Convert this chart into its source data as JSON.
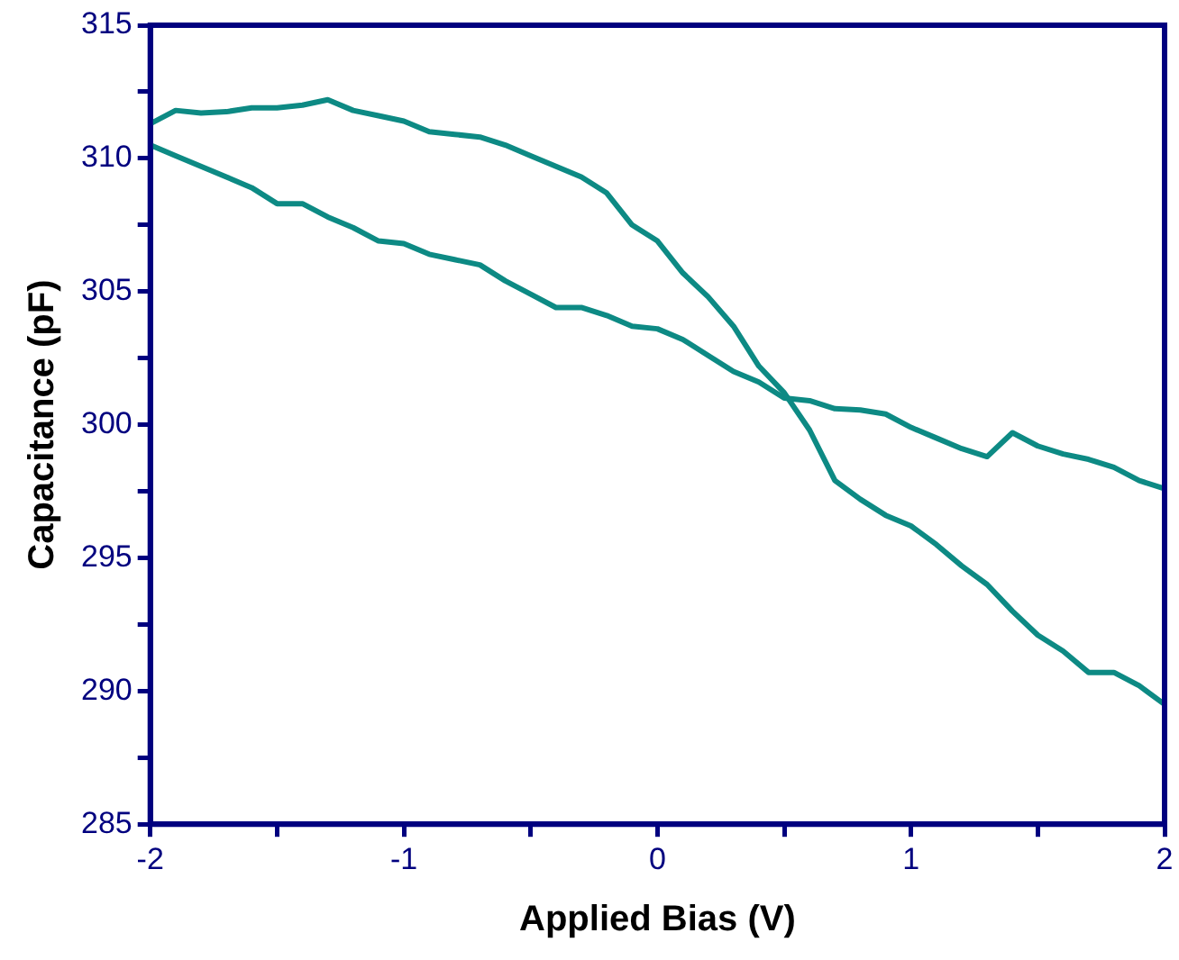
{
  "chart_data": {
    "type": "line",
    "xlabel": "Applied Bias (V)",
    "ylabel": "Capacitance (pF)",
    "xlim": [
      -2,
      2
    ],
    "ylim": [
      285,
      315
    ],
    "xticks": [
      -2,
      {
        "value": -1.5,
        "label": null
      },
      -1,
      {
        "value": -0.5,
        "label": null
      },
      0,
      {
        "value": 0.5,
        "label": null
      },
      1,
      {
        "value": 1.5,
        "label": null
      },
      2
    ],
    "yticks": [
      285,
      {
        "value": 287.5,
        "label": null
      },
      290,
      {
        "value": 292.5,
        "label": null
      },
      295,
      {
        "value": 297.5,
        "label": null
      },
      300,
      {
        "value": 302.5,
        "label": null
      },
      305,
      {
        "value": 307.5,
        "label": null
      },
      310,
      {
        "value": 312.5,
        "label": null
      },
      315
    ],
    "grid": false,
    "legend": false,
    "marker": "none",
    "line_style": "solid",
    "series": [
      {
        "color": "#0d8a84",
        "x": [
          -2,
          -1.9,
          -1.8,
          -1.7,
          -1.6,
          -1.5,
          -1.4,
          -1.3,
          -1.2,
          -1.1,
          -1,
          -0.9,
          -0.8,
          -0.7,
          -0.6,
          -0.5,
          -0.4,
          -0.3,
          -0.2,
          -0.1,
          0,
          0.1,
          0.2,
          0.3,
          0.4,
          0.5,
          0.6,
          0.7,
          0.8,
          0.9,
          1,
          1.1,
          1.2,
          1.3,
          1.4,
          1.5,
          1.6,
          1.7,
          1.8,
          1.9,
          2
        ],
        "values": [
          311.3,
          311.8,
          311.7,
          311.75,
          311.9,
          311.9,
          312.0,
          312.2,
          311.8,
          311.6,
          311.4,
          311.0,
          310.9,
          310.8,
          310.5,
          310.1,
          309.7,
          309.3,
          308.7,
          307.5,
          306.9,
          305.7,
          304.8,
          303.7,
          302.2,
          301.2,
          299.8,
          297.9,
          297.2,
          296.6,
          296.2,
          295.5,
          294.7,
          294.0,
          293.0,
          292.1,
          291.5,
          290.7,
          290.7,
          290.2,
          289.5
        ]
      },
      {
        "color": "#0d8a84",
        "x": [
          -2,
          -1.9,
          -1.8,
          -1.7,
          -1.6,
          -1.5,
          -1.4,
          -1.3,
          -1.2,
          -1.1,
          -1,
          -0.9,
          -0.8,
          -0.7,
          -0.6,
          -0.5,
          -0.4,
          -0.3,
          -0.2,
          -0.1,
          0,
          0.1,
          0.2,
          0.3,
          0.4,
          0.5,
          0.6,
          0.7,
          0.8,
          0.9,
          1,
          1.1,
          1.2,
          1.3,
          1.4,
          1.5,
          1.6,
          1.7,
          1.8,
          1.9,
          2
        ],
        "values": [
          310.5,
          310.1,
          309.7,
          309.3,
          308.9,
          308.3,
          308.3,
          307.8,
          307.4,
          306.9,
          306.8,
          306.4,
          306.2,
          306.0,
          305.4,
          304.9,
          304.4,
          304.4,
          304.1,
          303.7,
          303.6,
          303.2,
          302.6,
          302.0,
          301.6,
          301.0,
          300.9,
          300.6,
          300.55,
          300.4,
          299.9,
          299.5,
          299.1,
          298.8,
          299.7,
          299.2,
          298.9,
          298.7,
          298.4,
          297.9,
          297.6
        ]
      }
    ]
  }
}
